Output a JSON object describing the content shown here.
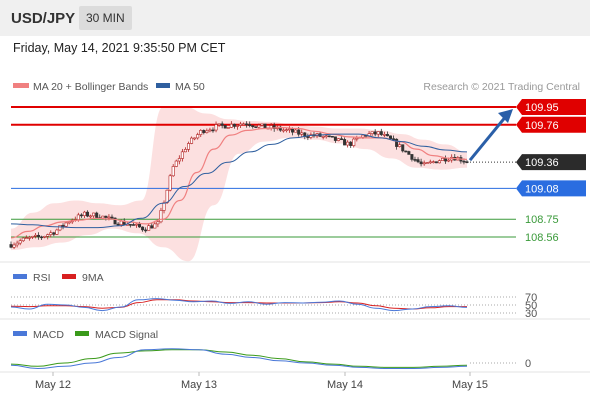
{
  "header": {
    "symbol": "USD/JPY",
    "interval": "30 MIN"
  },
  "datetime": "Friday, May 14, 2021 9:35:50 PM CET",
  "legend": {
    "ma20_label": "MA 20 + Bollinger Bands",
    "ma50_label": "MA 50"
  },
  "credit": "Research © 2021 Trading Central",
  "colors": {
    "ma20": "#f08080",
    "ma50": "#2f5f9f",
    "resistance": "#e00000",
    "support_blue": "#2a6de0",
    "support_green": "#3a9a3a",
    "bollinger_fill": "#fbd6d6",
    "arrow": "#2a5fa8",
    "rsi": "#4a78d8",
    "rsi_ma": "#d82020",
    "macd": "#4a78d8",
    "macd_signal": "#3a9a1a"
  },
  "levels": [
    {
      "label": "109.95",
      "value": 109.95,
      "kind": "resistance"
    },
    {
      "label": "109.76",
      "value": 109.76,
      "kind": "resistance"
    },
    {
      "label": "109.08",
      "value": 109.08,
      "kind": "support_blue"
    },
    {
      "label": "108.75",
      "value": 108.75,
      "kind": "support_green"
    },
    {
      "label": "108.56",
      "value": 108.56,
      "kind": "support_green"
    }
  ],
  "current_price": {
    "label": "109.36",
    "value": 109.36
  },
  "rsi_panel": {
    "rsi_label": "RSI",
    "ma_label": "9MA",
    "ticks": [
      "70",
      "50",
      "30"
    ]
  },
  "macd_panel": {
    "macd_label": "MACD",
    "signal_label": "MACD Signal",
    "ticks": [
      "0"
    ]
  },
  "chart_data": {
    "type": "line",
    "x_ticks": [
      "May 12",
      "May 13",
      "May 14",
      "May 15"
    ],
    "price_anchors": [
      108.48,
      108.54,
      108.56,
      108.62,
      108.74,
      108.8,
      108.79,
      108.73,
      108.7,
      108.65,
      108.7,
      109.3,
      109.55,
      109.7,
      109.74,
      109.76,
      109.78,
      109.74,
      109.72,
      109.69,
      109.65,
      109.64,
      109.6,
      109.55,
      109.65,
      109.67,
      109.58,
      109.45,
      109.32,
      109.38,
      109.42,
      109.37
    ],
    "ma20": [
      108.55,
      108.62,
      108.68,
      108.72,
      108.74,
      108.76,
      108.75,
      108.72,
      108.7,
      108.75,
      108.95,
      109.25,
      109.5,
      109.65,
      109.7,
      109.72,
      109.73,
      109.72,
      109.69,
      109.66,
      109.63,
      109.62,
      109.62,
      109.58,
      109.5,
      109.43,
      109.4,
      109.39
    ],
    "ma50": [
      108.7,
      108.69,
      108.67,
      108.66,
      108.66,
      108.68,
      108.76,
      108.92,
      109.1,
      109.24,
      109.36,
      109.47,
      109.55,
      109.62,
      109.65,
      109.66,
      109.66,
      109.62,
      109.58,
      109.53,
      109.49,
      109.47
    ],
    "bollinger_upper": [
      108.65,
      108.82,
      108.92,
      108.95,
      108.92,
      108.9,
      108.95,
      109.95,
      109.95,
      109.88,
      109.82,
      109.8,
      109.79,
      109.76,
      109.74,
      109.72,
      109.72,
      109.7,
      109.66,
      109.6,
      109.55,
      109.47
    ],
    "bollinger_lower": [
      108.42,
      108.45,
      108.5,
      108.58,
      108.65,
      108.6,
      108.45,
      108.3,
      108.9,
      109.45,
      109.58,
      109.62,
      109.6,
      109.56,
      109.5,
      109.4,
      109.3,
      109.28,
      109.3
    ],
    "projection": {
      "from": 109.36,
      "to": 109.95
    },
    "rsi": [
      45,
      40,
      52,
      50,
      44,
      36,
      45,
      63,
      66,
      62,
      58,
      60,
      54,
      58,
      52,
      56,
      55,
      57,
      60,
      52,
      42,
      36,
      40,
      46,
      48,
      44
    ],
    "rsi_ma": [
      47,
      46,
      48,
      48,
      46,
      42,
      44,
      56,
      63,
      63,
      60,
      58,
      56,
      56,
      55,
      55,
      55,
      56,
      58,
      55,
      48,
      42,
      40,
      43,
      46,
      46
    ],
    "macd": [
      -2,
      -5,
      -3,
      0,
      5,
      12,
      13,
      12,
      8,
      5,
      2,
      0,
      -2,
      -4,
      -5,
      -5,
      -4,
      -3
    ],
    "macd_signal": [
      -1,
      -3,
      0,
      4,
      9,
      11,
      12,
      12,
      10,
      7,
      4,
      1,
      -1,
      -3,
      -4,
      -4,
      -3,
      -2
    ]
  }
}
